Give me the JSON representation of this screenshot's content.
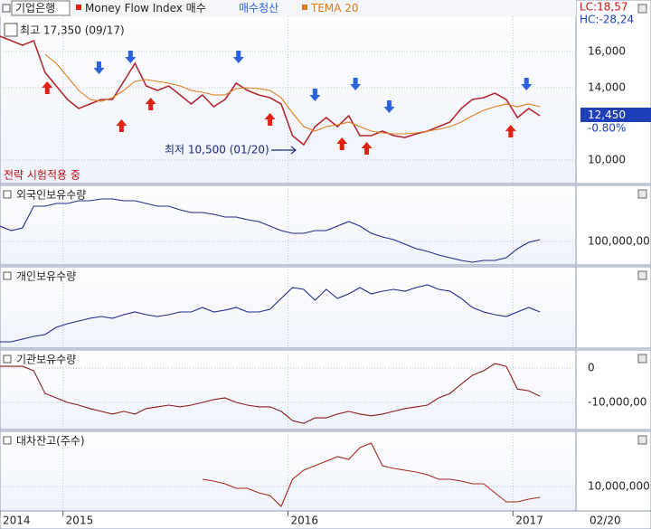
{
  "x_axis": {
    "xlim": [
      2014.72,
      2017.28
    ],
    "xticks": [
      {
        "value": 2014.72,
        "label": "2014"
      },
      2015,
      2016,
      2017
    ],
    "end_label": "02/20"
  },
  "chart_data": [
    {
      "type": "line",
      "title": "기업은행",
      "info": [
        "LC:18,57",
        "HC:-28,24"
      ],
      "last_price_label": "12,450",
      "change_label": "-0.80%",
      "annotations": [
        "최고 17,350 (09/17)",
        "최저 10,500 (01/20)",
        "전략 시험적용 중"
      ],
      "ylim": [
        8700,
        17950
      ],
      "yticks": [
        {
          "value": 10000,
          "label": "10,000"
        },
        {
          "value": 14000,
          "label": "14,000"
        },
        {
          "value": 16000,
          "label": "16,000"
        }
      ],
      "x": [
        2014.72,
        2014.77,
        2014.82,
        2014.87,
        2014.92,
        2014.97,
        2015.02,
        2015.07,
        2015.12,
        2015.17,
        2015.22,
        2015.27,
        2015.32,
        2015.37,
        2015.42,
        2015.47,
        2015.52,
        2015.57,
        2015.62,
        2015.67,
        2015.72,
        2015.77,
        2015.82,
        2015.87,
        2015.92,
        2015.97,
        2016.02,
        2016.07,
        2016.12,
        2016.17,
        2016.22,
        2016.27,
        2016.32,
        2016.37,
        2016.42,
        2016.47,
        2016.52,
        2016.57,
        2016.62,
        2016.67,
        2016.72,
        2016.77,
        2016.82,
        2016.87,
        2016.92,
        2016.97,
        2017.02,
        2017.07,
        2017.12
      ],
      "series": [
        {
          "name": "기업은행",
          "color": "#b02a30",
          "values": [
            16850,
            16600,
            16350,
            16600,
            14850,
            14100,
            13350,
            12850,
            13100,
            13350,
            13350,
            14350,
            15350,
            14100,
            13850,
            14100,
            13600,
            13100,
            13600,
            12950,
            13350,
            14250,
            13850,
            13600,
            13450,
            13100,
            11350,
            10850,
            11850,
            12350,
            11850,
            12450,
            11350,
            11350,
            11600,
            11350,
            11250,
            11450,
            11600,
            11850,
            12100,
            12850,
            13350,
            13450,
            13700,
            13350,
            12350,
            12850,
            12450
          ]
        },
        {
          "name": "TEMA 20",
          "color": "#e07b1a",
          "values": [
            null,
            null,
            null,
            null,
            15850,
            15350,
            14600,
            13850,
            13350,
            13250,
            13450,
            13850,
            14350,
            14450,
            14350,
            14250,
            14100,
            13850,
            13750,
            13600,
            13600,
            13950,
            14000,
            13950,
            13850,
            13450,
            12600,
            11850,
            11600,
            11850,
            11950,
            12100,
            11850,
            11600,
            11500,
            11450,
            11450,
            11500,
            11600,
            11700,
            11850,
            12100,
            12450,
            12750,
            12950,
            13100,
            12950,
            13100,
            12950
          ]
        }
      ],
      "buy_signals": {
        "name": "Money Flow Index 매수",
        "color": "#e02010",
        "x": [
          2014.93,
          2015.26,
          2015.39,
          2015.92,
          2016.24,
          2016.35,
          2016.99
        ],
        "y": [
          14350,
          12250,
          13450,
          12600,
          11250,
          11000,
          11950
        ]
      },
      "sell_signals": {
        "name": "매수청산",
        "color": "#2a62e0",
        "x": [
          2015.16,
          2015.3,
          2015.78,
          2016.12,
          2016.3,
          2016.45,
          2017.06
        ],
        "y": [
          14750,
          15350,
          15350,
          13250,
          13850,
          12600,
          13850
        ]
      }
    },
    {
      "type": "line",
      "title": "외국인보유수량",
      "ylim": [
        87000000,
        131000000
      ],
      "yticks": [
        {
          "value": 100000000,
          "label": "100,000,00"
        }
      ],
      "x": [
        2014.72,
        2014.77,
        2014.82,
        2014.87,
        2014.92,
        2014.97,
        2015.02,
        2015.07,
        2015.12,
        2015.17,
        2015.22,
        2015.27,
        2015.32,
        2015.37,
        2015.42,
        2015.47,
        2015.52,
        2015.57,
        2015.62,
        2015.67,
        2015.72,
        2015.77,
        2015.82,
        2015.87,
        2015.92,
        2015.97,
        2016.02,
        2016.07,
        2016.12,
        2016.17,
        2016.22,
        2016.27,
        2016.32,
        2016.37,
        2016.42,
        2016.47,
        2016.52,
        2016.57,
        2016.62,
        2016.67,
        2016.72,
        2016.77,
        2016.82,
        2016.87,
        2016.92,
        2016.97,
        2017.02,
        2017.07,
        2017.12
      ],
      "series": [
        {
          "name": "외국인보유수량",
          "color": "#1f2a8c",
          "values": [
            108500000,
            106000000,
            107500000,
            119500000,
            119500000,
            121000000,
            121000000,
            122500000,
            122500000,
            123500000,
            123500000,
            122500000,
            122500000,
            121000000,
            119500000,
            119500000,
            117500000,
            116000000,
            116000000,
            115000000,
            113500000,
            113500000,
            112000000,
            111000000,
            108500000,
            106000000,
            104500000,
            104500000,
            106000000,
            106000000,
            108500000,
            111000000,
            108500000,
            104500000,
            102500000,
            101000000,
            98500000,
            96000000,
            94500000,
            92500000,
            91000000,
            89500000,
            88500000,
            89500000,
            89500000,
            91000000,
            96000000,
            99500000,
            101000000
          ]
        }
      ]
    },
    {
      "type": "line",
      "title": "개인보유수량",
      "ylim": [
        0,
        90
      ],
      "yticks": [],
      "x": [
        2014.72,
        2014.77,
        2014.82,
        2014.87,
        2014.92,
        2014.97,
        2015.02,
        2015.07,
        2015.12,
        2015.17,
        2015.22,
        2015.27,
        2015.32,
        2015.37,
        2015.42,
        2015.47,
        2015.52,
        2015.57,
        2015.62,
        2015.67,
        2015.72,
        2015.77,
        2015.82,
        2015.87,
        2015.92,
        2015.97,
        2016.02,
        2016.07,
        2016.12,
        2016.17,
        2016.22,
        2016.27,
        2016.32,
        2016.37,
        2016.42,
        2016.47,
        2016.52,
        2016.57,
        2016.62,
        2016.67,
        2016.72,
        2016.77,
        2016.82,
        2016.87,
        2016.92,
        2016.97,
        2017.02,
        2017.07,
        2017.12
      ],
      "series": [
        {
          "name": "개인보유수량",
          "color": "#1f2a8c",
          "values": [
            7,
            7,
            10,
            13,
            15,
            23,
            27,
            30,
            33,
            35,
            33,
            37,
            40,
            37,
            35,
            37,
            40,
            40,
            45,
            40,
            42,
            45,
            40,
            40,
            43,
            55,
            67,
            65,
            53,
            65,
            55,
            60,
            67,
            60,
            63,
            65,
            63,
            67,
            70,
            65,
            63,
            55,
            45,
            40,
            37,
            35,
            40,
            45,
            40
          ]
        }
      ]
    },
    {
      "type": "line",
      "title": "기관보유수량",
      "ylim": [
        -17900000,
        5260000
      ],
      "yticks": [
        0,
        {
          "value": -10000000,
          "label": "-10,000,00"
        }
      ],
      "x": [
        2014.72,
        2014.77,
        2014.82,
        2014.87,
        2014.92,
        2014.97,
        2015.02,
        2015.07,
        2015.12,
        2015.17,
        2015.22,
        2015.27,
        2015.32,
        2015.37,
        2015.42,
        2015.47,
        2015.52,
        2015.57,
        2015.62,
        2015.67,
        2015.72,
        2015.77,
        2015.82,
        2015.87,
        2015.92,
        2015.97,
        2016.02,
        2016.07,
        2016.12,
        2016.17,
        2016.22,
        2016.27,
        2016.32,
        2016.37,
        2016.42,
        2016.47,
        2016.52,
        2016.57,
        2016.62,
        2016.67,
        2016.72,
        2016.77,
        2016.82,
        2016.87,
        2016.92,
        2016.97,
        2017.02,
        2017.07,
        2017.12
      ],
      "series": [
        {
          "name": "기관보유수량",
          "color": "#8b1a1a",
          "values": [
            500000,
            500000,
            500000,
            -800000,
            -7400000,
            -8700000,
            -10000000,
            -10800000,
            -11800000,
            -12600000,
            -13400000,
            -12600000,
            -13400000,
            -11800000,
            -11300000,
            -10800000,
            -11300000,
            -10800000,
            -10000000,
            -9200000,
            -8700000,
            -10000000,
            -10800000,
            -11300000,
            -11300000,
            -12600000,
            -15300000,
            -16100000,
            -14500000,
            -14500000,
            -13400000,
            -12600000,
            -13400000,
            -13900000,
            -13400000,
            -12600000,
            -11800000,
            -11300000,
            -10800000,
            -8700000,
            -7400000,
            -4700000,
            -2100000,
            -800000,
            1300000,
            500000,
            -6100000,
            -6600000,
            -8200000
          ]
        }
      ]
    },
    {
      "type": "line",
      "title": "대차잔고(주수)",
      "ylim": [
        3250000,
        25250000
      ],
      "yticks": [
        {
          "value": 10000000,
          "label": "10,000,000"
        }
      ],
      "x": [
        2014.72,
        2014.77,
        2014.82,
        2014.87,
        2014.92,
        2014.97,
        2015.02,
        2015.07,
        2015.12,
        2015.17,
        2015.22,
        2015.27,
        2015.32,
        2015.37,
        2015.42,
        2015.47,
        2015.52,
        2015.57,
        2015.62,
        2015.67,
        2015.72,
        2015.77,
        2015.82,
        2015.87,
        2015.92,
        2015.97,
        2016.02,
        2016.07,
        2016.12,
        2016.17,
        2016.22,
        2016.27,
        2016.32,
        2016.37,
        2016.42,
        2016.47,
        2016.52,
        2016.57,
        2016.62,
        2016.67,
        2016.72,
        2016.77,
        2016.82,
        2016.87,
        2016.92,
        2016.97,
        2017.02,
        2017.07,
        2017.12
      ],
      "series": [
        {
          "name": "대차잔고(주수)",
          "color": "#a8281e",
          "values": [
            null,
            null,
            null,
            null,
            null,
            null,
            null,
            null,
            null,
            null,
            null,
            null,
            null,
            null,
            null,
            null,
            null,
            null,
            12000000,
            11500000,
            10750000,
            9500000,
            9500000,
            8250000,
            7500000,
            4500000,
            12000000,
            14500000,
            15750000,
            17000000,
            18250000,
            17500000,
            20750000,
            22000000,
            15750000,
            15000000,
            14500000,
            14000000,
            13250000,
            12000000,
            12000000,
            11500000,
            10750000,
            10750000,
            8250000,
            5750000,
            5750000,
            6500000,
            7000000
          ]
        }
      ]
    }
  ]
}
